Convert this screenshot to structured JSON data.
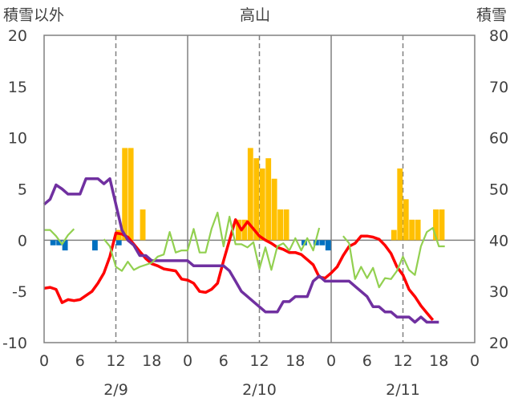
{
  "chart_data": {
    "type": "bar+line",
    "title": "高山",
    "ylabel_left": "積雪以外",
    "ylabel_right": "積雪",
    "ylim_left": [
      -10,
      20
    ],
    "ylim_right": [
      20,
      80
    ],
    "yticks_left": [
      "20",
      "15",
      "10",
      "5",
      "0",
      "-5",
      "-10"
    ],
    "yticks_right": [
      "80",
      "70",
      "60",
      "50",
      "40",
      "30",
      "20"
    ],
    "xticks": [
      "0",
      "6",
      "12",
      "18",
      "0",
      "6",
      "12",
      "18",
      "0",
      "6",
      "12",
      "18",
      "0"
    ],
    "day_labels": [
      "2/9",
      "2/10",
      "2/11"
    ],
    "x_range_hours": [
      0,
      72
    ],
    "grid": "vertical dashed at 12:00, solid at 0:00",
    "snowfall_bars": {
      "color": "#ffc000",
      "values": [
        0,
        0,
        0,
        0,
        0,
        0,
        0,
        0,
        0,
        0,
        0,
        0,
        1,
        9,
        9,
        0,
        3,
        0,
        0,
        0,
        0,
        0,
        0,
        0,
        0,
        0,
        0,
        0,
        0,
        0,
        0,
        0,
        2,
        2,
        9,
        8,
        7,
        8,
        6,
        3,
        3,
        0,
        0,
        0,
        0,
        0,
        0,
        0,
        0,
        0,
        0,
        0,
        0,
        0,
        0,
        0,
        0,
        0,
        1,
        7,
        4,
        2,
        2,
        0,
        0,
        3,
        3,
        0,
        0,
        0,
        0,
        0
      ]
    },
    "precip_bars": {
      "color": "#0070c0",
      "values": [
        0,
        -0.5,
        -0.5,
        -1,
        0,
        0,
        0,
        0,
        -1,
        0,
        0,
        0,
        -0.5,
        0,
        0,
        0,
        0,
        0,
        0,
        0,
        0,
        0,
        0,
        0,
        0,
        0,
        0,
        0,
        0,
        0,
        0,
        0,
        0,
        0,
        0,
        0,
        0,
        0,
        0,
        0,
        0,
        0,
        0,
        -0.5,
        0,
        -0.5,
        -0.5,
        -1,
        0,
        0,
        0,
        0,
        0,
        0,
        0,
        0,
        0,
        0,
        0,
        0,
        0,
        0,
        0,
        0,
        0,
        0,
        0,
        0,
        0,
        0,
        0,
        0
      ]
    },
    "series": [
      {
        "color": "#ff0000",
        "values": [
          -4.7,
          -4.6,
          -4.8,
          -6.1,
          -5.8,
          -5.9,
          -5.8,
          -5.4,
          -5.0,
          -4.2,
          -3.2,
          -1.6,
          0.7,
          0.6,
          0.3,
          -0.4,
          -1.1,
          -1.8,
          -2.3,
          -2.5,
          -2.8,
          -2.9,
          -3.0,
          -3.8,
          -3.9,
          -4.2,
          -5.0,
          -5.1,
          -4.8,
          -4.2,
          -2.0,
          0.0,
          2.0,
          1.0,
          1.8,
          1.1,
          0.4,
          0.0,
          -0.3,
          -0.7,
          -0.9,
          -1.2,
          -1.2,
          -1.4,
          -1.9,
          -2.4,
          -3.6,
          -3.7,
          -3.2,
          -2.6,
          -1.5,
          -0.6,
          -0.3,
          0.4,
          0.4,
          0.3,
          0.1,
          -0.5,
          -1.3,
          -2.6,
          -3.4,
          -4.8,
          -5.5,
          -6.4,
          -7.1,
          -7.8
        ]
      },
      {
        "color": "#7030a0",
        "values": [
          3.5,
          4.0,
          5.4,
          5.0,
          4.5,
          4.5,
          4.5,
          6.0,
          6.0,
          6.0,
          5.5,
          6.0,
          3.5,
          1.0,
          0.0,
          -0.5,
          -1.5,
          -1.5,
          -2.0,
          -2.0,
          -2.0,
          -2.0,
          -2.0,
          -2.0,
          -2.0,
          -2.5,
          -2.5,
          -2.5,
          -2.5,
          -2.5,
          -2.5,
          -3.0,
          -4.0,
          -5.0,
          -5.5,
          -6.0,
          -6.5,
          -7.0,
          -7.0,
          -7.0,
          -6.0,
          -6.0,
          -5.5,
          -5.5,
          -5.5,
          -4.0,
          -3.5,
          -4.0,
          -4.0,
          -4.0,
          -4.0,
          -4.0,
          -4.5,
          -5.0,
          -5.5,
          -6.5,
          -6.5,
          -7.0,
          -7.0,
          -7.5,
          -7.5,
          -7.5,
          -8.0,
          -7.5,
          -8.0,
          -8.0,
          -8.0
        ]
      },
      {
        "color": "#92d050",
        "values": [
          1.0,
          1.0,
          0.4,
          -0.4,
          0.5,
          1.1,
          null,
          null,
          null,
          null,
          0.1,
          -0.6,
          -2.6,
          -3.0,
          -2.1,
          -2.9,
          -2.6,
          -2.4,
          -2.2,
          -1.6,
          -1.4,
          0.8,
          -1.2,
          -1.0,
          -1.0,
          1.1,
          -1.2,
          -1.2,
          1.1,
          2.7,
          -0.6,
          2.3,
          -0.4,
          -0.4,
          -0.7,
          -0.2,
          -2.8,
          -0.7,
          -2.9,
          -0.6,
          -0.3,
          -1.0,
          0.2,
          -1.0,
          0.2,
          -1.0,
          1.2,
          null,
          null,
          null,
          0.4,
          -0.3,
          -3.8,
          -2.6,
          -3.7,
          -2.7,
          -4.6,
          -3.7,
          -3.8,
          -3.0,
          -1.6,
          -2.9,
          -3.4,
          -0.6,
          0.8,
          1.2,
          -0.6,
          -0.6
        ]
      }
    ]
  }
}
